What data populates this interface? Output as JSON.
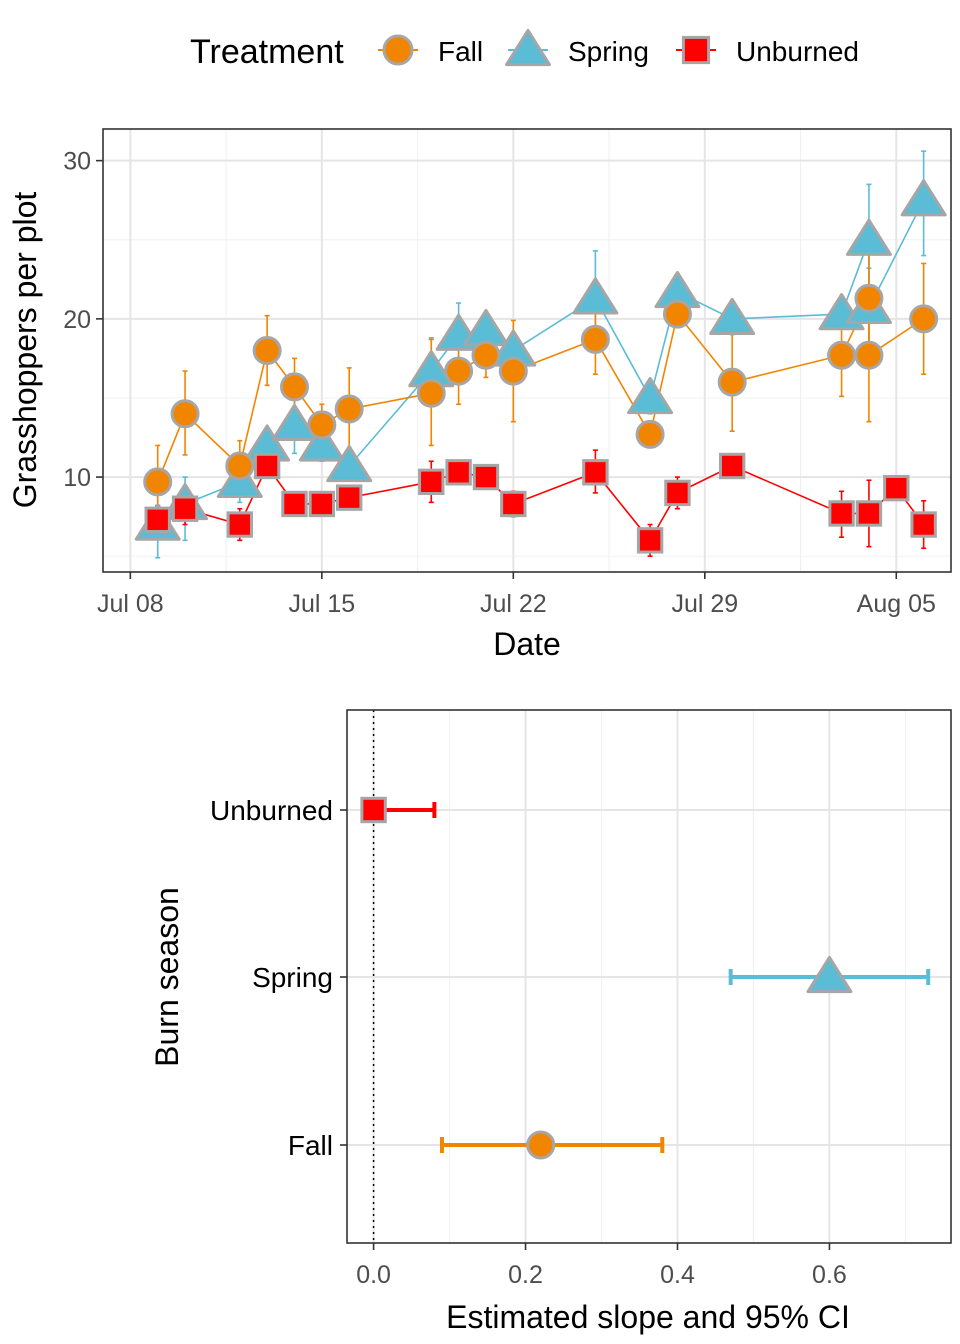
{
  "legend": {
    "title": "Treatment",
    "placement": "top",
    "entries": [
      {
        "name": "Fall",
        "shape": "circle",
        "color": "#F28500"
      },
      {
        "name": "Spring",
        "shape": "triangle",
        "color": "#5BBCD6"
      },
      {
        "name": "Unburned",
        "shape": "square",
        "color": "#FF0000"
      }
    ]
  },
  "outline_color": "#A6A6A6",
  "chart_data": [
    {
      "type": "line",
      "xlabel": "Date",
      "ylabel": "Grasshoppers per plot",
      "x_type": "date",
      "xlim": [
        "2023-07-07",
        "2023-08-07"
      ],
      "ylim": [
        4,
        32
      ],
      "x_ticks": [
        {
          "date": "2023-07-08",
          "label": "Jul 08"
        },
        {
          "date": "2023-07-15",
          "label": "Jul 15"
        },
        {
          "date": "2023-07-22",
          "label": "Jul 22"
        },
        {
          "date": "2023-07-29",
          "label": "Jul 29"
        },
        {
          "date": "2023-08-05",
          "label": "Aug 05"
        }
      ],
      "y_ticks": [
        10,
        20,
        30
      ],
      "grid": true,
      "series": [
        {
          "name": "Fall",
          "points": [
            {
              "x": "2023-07-09",
              "y": 9.7,
              "lo": 7.4,
              "hi": 12.0
            },
            {
              "x": "2023-07-10",
              "y": 14.0,
              "lo": 11.4,
              "hi": 16.7
            },
            {
              "x": "2023-07-12",
              "y": 10.7,
              "lo": 9.0,
              "hi": 12.3
            },
            {
              "x": "2023-07-13",
              "y": 18.0,
              "lo": 15.8,
              "hi": 20.2
            },
            {
              "x": "2023-07-14",
              "y": 15.7,
              "lo": 13.8,
              "hi": 17.5
            },
            {
              "x": "2023-07-15",
              "y": 13.3,
              "lo": 12.1,
              "hi": 14.6
            },
            {
              "x": "2023-07-16",
              "y": 14.3,
              "lo": 11.8,
              "hi": 16.9
            },
            {
              "x": "2023-07-19",
              "y": 15.3,
              "lo": 12.0,
              "hi": 18.7
            },
            {
              "x": "2023-07-20",
              "y": 16.7,
              "lo": 14.6,
              "hi": 18.8
            },
            {
              "x": "2023-07-21",
              "y": 17.7,
              "lo": 16.3,
              "hi": 19.0
            },
            {
              "x": "2023-07-22",
              "y": 16.7,
              "lo": 13.5,
              "hi": 19.9
            },
            {
              "x": "2023-07-25",
              "y": 18.7,
              "lo": 16.5,
              "hi": 20.8
            },
            {
              "x": "2023-07-27",
              "y": 12.7,
              "lo": 12.0,
              "hi": 13.3
            },
            {
              "x": "2023-07-28",
              "y": 20.3,
              "lo": 19.7,
              "hi": 21.0
            },
            {
              "x": "2023-07-30",
              "y": 16.0,
              "lo": 12.9,
              "hi": 19.1
            },
            {
              "x": "2023-08-03",
              "y": 17.7,
              "lo": 15.1,
              "hi": 20.3
            },
            {
              "x": "2023-08-04",
              "y": 21.3,
              "lo": 17.2,
              "hi": 25.4
            },
            {
              "x": "2023-08-04",
              "y": 17.7,
              "lo": 13.5,
              "hi": 21.8
            },
            {
              "x": "2023-08-06",
              "y": 20.0,
              "lo": 16.5,
              "hi": 23.5
            }
          ]
        },
        {
          "name": "Spring",
          "points": [
            {
              "x": "2023-07-09",
              "y": 7.0,
              "lo": 4.9,
              "hi": 9.1
            },
            {
              "x": "2023-07-10",
              "y": 8.3,
              "lo": 6.0,
              "hi": 10.0
            },
            {
              "x": "2023-07-12",
              "y": 9.7,
              "lo": 8.4,
              "hi": 11.0
            },
            {
              "x": "2023-07-13",
              "y": 12.0,
              "lo": 11.0,
              "hi": 13.0
            },
            {
              "x": "2023-07-14",
              "y": 13.3,
              "lo": 11.5,
              "hi": 15.1
            },
            {
              "x": "2023-07-15",
              "y": 12.0,
              "lo": 11.0,
              "hi": 13.0
            },
            {
              "x": "2023-07-16",
              "y": 10.7,
              "lo": 10.0,
              "hi": 11.3
            },
            {
              "x": "2023-07-19",
              "y": 16.7,
              "lo": 14.6,
              "hi": 18.8
            },
            {
              "x": "2023-07-20",
              "y": 19.0,
              "lo": 17.0,
              "hi": 21.0
            },
            {
              "x": "2023-07-21",
              "y": 19.3,
              "lo": 18.7,
              "hi": 20.0
            },
            {
              "x": "2023-07-22",
              "y": 18.0,
              "lo": 17.0,
              "hi": 19.0
            },
            {
              "x": "2023-07-25",
              "y": 21.3,
              "lo": 18.4,
              "hi": 24.3
            },
            {
              "x": "2023-07-27",
              "y": 15.0,
              "lo": 14.0,
              "hi": 16.0
            },
            {
              "x": "2023-07-28",
              "y": 21.7,
              "lo": 21.0,
              "hi": 22.3
            },
            {
              "x": "2023-07-30",
              "y": 20.0,
              "lo": 19.0,
              "hi": 21.0
            },
            {
              "x": "2023-08-03",
              "y": 20.3,
              "lo": 19.7,
              "hi": 21.0
            },
            {
              "x": "2023-08-04",
              "y": 25.0,
              "lo": 21.5,
              "hi": 28.5
            },
            {
              "x": "2023-08-04",
              "y": 20.7,
              "lo": 18.2,
              "hi": 23.2
            },
            {
              "x": "2023-08-06",
              "y": 27.5,
              "lo": 24.0,
              "hi": 30.6
            }
          ]
        },
        {
          "name": "Unburned",
          "points": [
            {
              "x": "2023-07-09",
              "y": 7.3,
              "lo": 6.5,
              "hi": 8.2
            },
            {
              "x": "2023-07-10",
              "y": 8.0,
              "lo": 7.0,
              "hi": 9.0
            },
            {
              "x": "2023-07-12",
              "y": 7.0,
              "lo": 6.0,
              "hi": 8.0
            },
            {
              "x": "2023-07-13",
              "y": 10.7,
              "lo": 10.0,
              "hi": 11.3
            },
            {
              "x": "2023-07-14",
              "y": 8.3,
              "lo": 7.7,
              "hi": 9.0
            },
            {
              "x": "2023-07-15",
              "y": 8.3,
              "lo": 7.7,
              "hi": 9.0
            },
            {
              "x": "2023-07-16",
              "y": 8.7,
              "lo": 8.0,
              "hi": 9.3
            },
            {
              "x": "2023-07-19",
              "y": 9.7,
              "lo": 8.4,
              "hi": 11.0
            },
            {
              "x": "2023-07-20",
              "y": 10.3,
              "lo": 9.7,
              "hi": 11.0
            },
            {
              "x": "2023-07-21",
              "y": 10.0,
              "lo": 9.3,
              "hi": 10.7
            },
            {
              "x": "2023-07-22",
              "y": 8.3,
              "lo": 7.5,
              "hi": 9.1
            },
            {
              "x": "2023-07-25",
              "y": 10.3,
              "lo": 9.0,
              "hi": 11.7
            },
            {
              "x": "2023-07-27",
              "y": 6.0,
              "lo": 5.0,
              "hi": 7.0
            },
            {
              "x": "2023-07-28",
              "y": 9.0,
              "lo": 8.0,
              "hi": 10.0
            },
            {
              "x": "2023-07-30",
              "y": 10.7,
              "lo": 10.0,
              "hi": 11.3
            },
            {
              "x": "2023-08-03",
              "y": 7.7,
              "lo": 6.2,
              "hi": 9.1
            },
            {
              "x": "2023-08-04",
              "y": 7.7,
              "lo": 5.6,
              "hi": 9.8
            },
            {
              "x": "2023-08-05",
              "y": 9.3,
              "lo": 8.7,
              "hi": 10.0
            },
            {
              "x": "2023-08-06",
              "y": 7.0,
              "lo": 5.5,
              "hi": 8.5
            }
          ]
        }
      ]
    },
    {
      "type": "scatter",
      "orientation": "horizontal",
      "xlabel": "Estimated slope and 95% CI",
      "ylabel": "Burn season",
      "xlim": [
        -0.035,
        0.76
      ],
      "x_ticks": [
        0.0,
        0.2,
        0.4,
        0.6
      ],
      "x_tick_labels": [
        "0.0",
        "0.2",
        "0.4",
        "0.6"
      ],
      "categories": [
        "Unburned",
        "Spring",
        "Fall"
      ],
      "reference_line": 0,
      "grid": true,
      "estimates": [
        {
          "name": "Unburned",
          "value": 0.0,
          "lo": 0.0,
          "hi": 0.08
        },
        {
          "name": "Spring",
          "value": 0.6,
          "lo": 0.47,
          "hi": 0.73
        },
        {
          "name": "Fall",
          "value": 0.22,
          "lo": 0.09,
          "hi": 0.38
        }
      ]
    }
  ]
}
